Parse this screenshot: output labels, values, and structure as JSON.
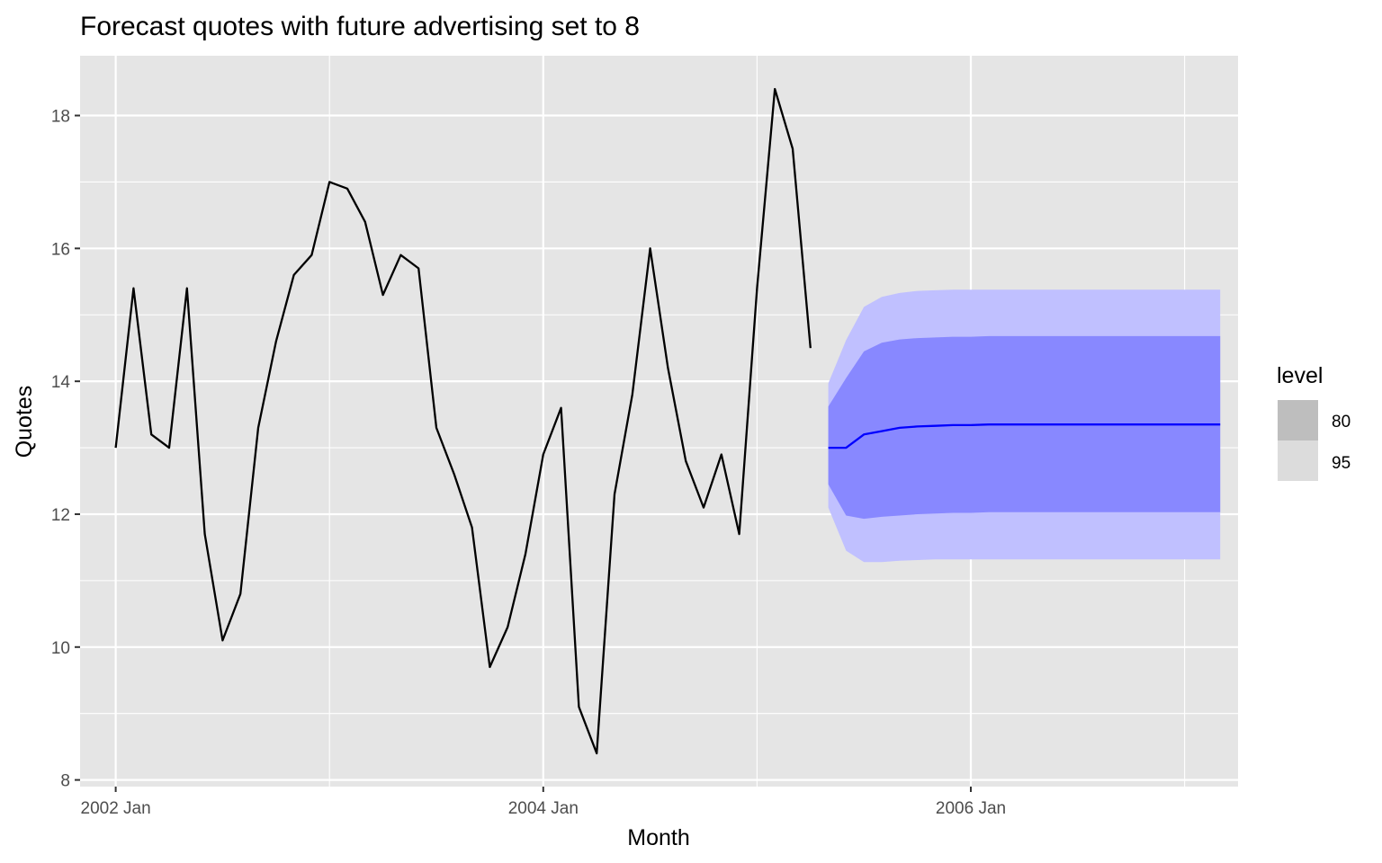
{
  "chart_data": {
    "type": "line",
    "title": "Forecast quotes with future advertising set to 8",
    "xlabel": "Month",
    "ylabel": "Quotes",
    "x_tick_labels": [
      "2002 Jan",
      "2004 Jan",
      "2006 Jan"
    ],
    "y_ticks": [
      8,
      10,
      12,
      14,
      16,
      18
    ],
    "xlim": [
      "2001-11",
      "2007-04"
    ],
    "ylim": [
      7.9,
      18.9
    ],
    "grid": true,
    "legend": {
      "title": "level",
      "position": "right",
      "entries": [
        {
          "label": "80",
          "color": "#bebebe"
        },
        {
          "label": "95",
          "color": "#dcdcdc"
        }
      ]
    },
    "colors": {
      "panel_background": "#e5e5e5",
      "gridline": "#ffffff",
      "observed_line": "#000000",
      "forecast_line": "#0000ff",
      "interval_80": "#8888ff",
      "interval_95": "#c0c0ff"
    },
    "series": [
      {
        "name": "Quotes",
        "x": [
          "2002-01",
          "2002-02",
          "2002-03",
          "2002-04",
          "2002-05",
          "2002-06",
          "2002-07",
          "2002-08",
          "2002-09",
          "2002-10",
          "2002-11",
          "2002-12",
          "2003-01",
          "2003-02",
          "2003-03",
          "2003-04",
          "2003-05",
          "2003-06",
          "2003-07",
          "2003-08",
          "2003-09",
          "2003-10",
          "2003-11",
          "2003-12",
          "2004-01",
          "2004-02",
          "2004-03",
          "2004-04",
          "2004-05",
          "2004-06",
          "2004-07",
          "2004-08",
          "2004-09",
          "2004-10",
          "2004-11",
          "2004-12",
          "2005-01",
          "2005-02",
          "2005-03",
          "2005-04"
        ],
        "values": [
          13.0,
          15.4,
          13.2,
          13.0,
          15.4,
          11.7,
          10.1,
          10.8,
          13.3,
          14.6,
          15.6,
          15.9,
          17.0,
          16.9,
          16.4,
          15.3,
          15.9,
          15.7,
          13.3,
          12.6,
          11.8,
          9.7,
          10.3,
          11.4,
          12.9,
          13.6,
          9.1,
          8.4,
          12.3,
          13.8,
          16.0,
          14.2,
          12.8,
          12.1,
          12.9,
          11.7,
          15.4,
          18.4,
          17.5,
          14.5
        ]
      },
      {
        "name": "Forecast",
        "x": [
          "2005-05",
          "2005-06",
          "2005-07",
          "2005-08",
          "2005-09",
          "2005-10",
          "2005-11",
          "2005-12",
          "2006-01",
          "2006-02",
          "2006-03",
          "2006-04",
          "2006-05",
          "2006-06",
          "2006-07",
          "2006-08",
          "2006-09",
          "2006-10",
          "2006-11",
          "2006-12",
          "2007-01",
          "2007-02",
          "2007-03"
        ],
        "values": [
          13.0,
          13.0,
          13.2,
          13.25,
          13.3,
          13.32,
          13.33,
          13.34,
          13.34,
          13.35,
          13.35,
          13.35,
          13.35,
          13.35,
          13.35,
          13.35,
          13.35,
          13.35,
          13.35,
          13.35,
          13.35,
          13.35,
          13.35
        ],
        "lower_80": [
          12.45,
          11.98,
          11.93,
          11.96,
          11.98,
          12.0,
          12.01,
          12.02,
          12.02,
          12.03,
          12.03,
          12.03,
          12.03,
          12.03,
          12.03,
          12.03,
          12.03,
          12.03,
          12.03,
          12.03,
          12.03,
          12.03,
          12.03
        ],
        "upper_80": [
          13.62,
          14.05,
          14.45,
          14.58,
          14.63,
          14.65,
          14.66,
          14.67,
          14.67,
          14.68,
          14.68,
          14.68,
          14.68,
          14.68,
          14.68,
          14.68,
          14.68,
          14.68,
          14.68,
          14.68,
          14.68,
          14.68,
          14.68
        ],
        "lower_95": [
          12.1,
          11.45,
          11.28,
          11.28,
          11.3,
          11.31,
          11.32,
          11.32,
          11.32,
          11.32,
          11.32,
          11.32,
          11.32,
          11.32,
          11.32,
          11.32,
          11.32,
          11.32,
          11.32,
          11.32,
          11.32,
          11.32,
          11.32
        ],
        "upper_95": [
          13.97,
          14.62,
          15.12,
          15.27,
          15.33,
          15.36,
          15.37,
          15.38,
          15.38,
          15.38,
          15.38,
          15.38,
          15.38,
          15.38,
          15.38,
          15.38,
          15.38,
          15.38,
          15.38,
          15.38,
          15.38,
          15.38,
          15.38
        ]
      }
    ]
  }
}
